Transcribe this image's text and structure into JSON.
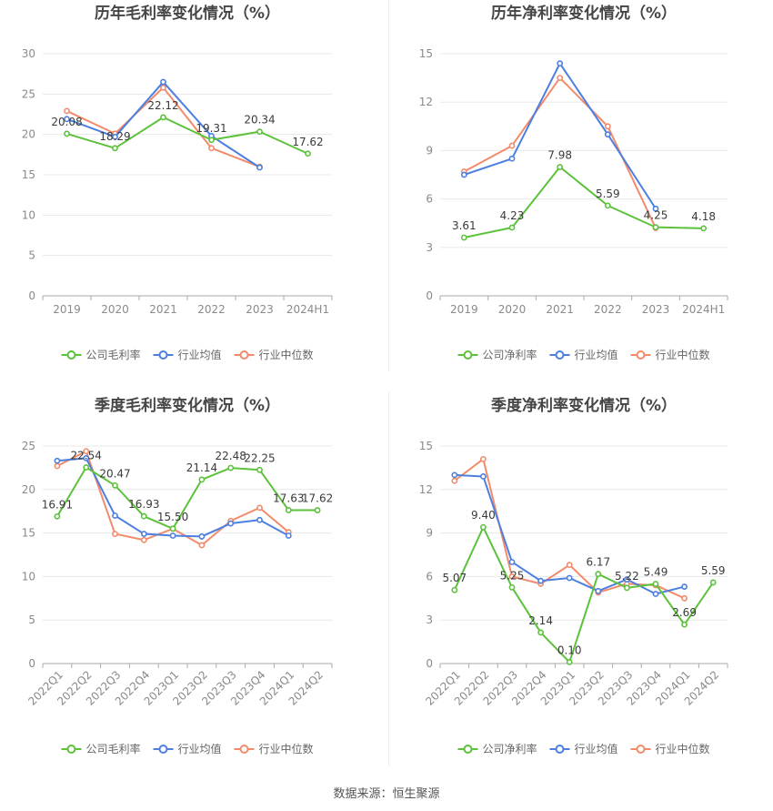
{
  "source": "数据来源：恒生聚源",
  "chart_data": [
    {
      "type": "line",
      "title": "历年毛利率变化情况（%）",
      "categories": [
        "2019",
        "2020",
        "2021",
        "2022",
        "2023",
        "2024H1"
      ],
      "ylim": [
        0,
        30
      ],
      "yticks": [
        "0",
        "5",
        "10",
        "15",
        "20",
        "25",
        "30"
      ],
      "grid": true,
      "legend": "bottom",
      "series": [
        {
          "name": "公司毛利率",
          "color": "#5cc23b",
          "values": [
            20.08,
            18.29,
            22.12,
            19.31,
            20.34,
            17.62
          ],
          "labels": [
            "20.08",
            "18.29",
            "22.12",
            "19.31",
            "20.34",
            "17.62"
          ]
        },
        {
          "name": "行业均值",
          "color": "#4c7fe0",
          "values": [
            21.9,
            19.7,
            26.5,
            19.8,
            15.9,
            null
          ]
        },
        {
          "name": "行业中位数",
          "color": "#f28b6b",
          "values": [
            22.9,
            20.1,
            25.8,
            18.3,
            16.0,
            null
          ]
        }
      ]
    },
    {
      "type": "line",
      "title": "历年净利率变化情况（%）",
      "categories": [
        "2019",
        "2020",
        "2021",
        "2022",
        "2023",
        "2024H1"
      ],
      "ylim": [
        0,
        15
      ],
      "yticks": [
        "0",
        "3",
        "6",
        "9",
        "12",
        "15"
      ],
      "grid": true,
      "legend": "bottom",
      "series": [
        {
          "name": "公司净利率",
          "color": "#5cc23b",
          "values": [
            3.61,
            4.23,
            7.98,
            5.59,
            4.25,
            4.18
          ],
          "labels": [
            "3.61",
            "4.23",
            "7.98",
            "5.59",
            "4.25",
            "4.18"
          ]
        },
        {
          "name": "行业均值",
          "color": "#4c7fe0",
          "values": [
            7.5,
            8.5,
            14.4,
            10.0,
            5.4,
            null
          ]
        },
        {
          "name": "行业中位数",
          "color": "#f28b6b",
          "values": [
            7.7,
            9.3,
            13.5,
            10.5,
            4.2,
            null
          ]
        }
      ]
    },
    {
      "type": "line",
      "title": "季度毛利率变化情况（%）",
      "categories": [
        "2022Q1",
        "2022Q2",
        "2022Q3",
        "2022Q4",
        "2023Q1",
        "2023Q2",
        "2023Q3",
        "2023Q4",
        "2024Q1",
        "2024Q2"
      ],
      "ylim": [
        0,
        25
      ],
      "yticks": [
        "0",
        "5",
        "10",
        "15",
        "20",
        "25"
      ],
      "grid": true,
      "legend": "bottom",
      "series": [
        {
          "name": "公司毛利率",
          "color": "#5cc23b",
          "values": [
            16.91,
            22.54,
            20.47,
            16.93,
            15.5,
            21.14,
            22.48,
            22.25,
            17.63,
            17.62
          ],
          "labels": [
            "16.91",
            "22.54",
            "20.47",
            "16.93",
            "15.50",
            "21.14",
            "22.48",
            "22.25",
            "17.63",
            "17.62"
          ]
        },
        {
          "name": "行业均值",
          "color": "#4c7fe0",
          "values": [
            23.3,
            23.6,
            17.0,
            14.9,
            14.7,
            14.6,
            16.1,
            16.5,
            14.7,
            null
          ]
        },
        {
          "name": "行业中位数",
          "color": "#f28b6b",
          "values": [
            22.7,
            24.4,
            14.9,
            14.2,
            15.5,
            13.6,
            16.4,
            17.9,
            15.1,
            null
          ]
        }
      ]
    },
    {
      "type": "line",
      "title": "季度净利率变化情况（%）",
      "categories": [
        "2022Q1",
        "2022Q2",
        "2022Q3",
        "2022Q4",
        "2023Q1",
        "2023Q2",
        "2023Q3",
        "2023Q4",
        "2024Q1",
        "2024Q2"
      ],
      "ylim": [
        0,
        15
      ],
      "yticks": [
        "0",
        "3",
        "6",
        "9",
        "12",
        "15"
      ],
      "grid": true,
      "legend": "bottom",
      "series": [
        {
          "name": "公司净利率",
          "color": "#5cc23b",
          "values": [
            5.07,
            9.4,
            5.25,
            2.14,
            0.1,
            6.17,
            5.22,
            5.49,
            2.69,
            5.59
          ],
          "labels": [
            "5.07",
            "9.40",
            "5.25",
            "2.14",
            "0.10",
            "6.17",
            "5.22",
            "5.49",
            "2.69",
            "5.59"
          ]
        },
        {
          "name": "行业均值",
          "color": "#4c7fe0",
          "values": [
            13.0,
            12.9,
            7.0,
            5.7,
            5.9,
            5.0,
            5.8,
            4.8,
            5.3,
            null
          ]
        },
        {
          "name": "行业中位数",
          "color": "#f28b6b",
          "values": [
            12.6,
            14.1,
            6.0,
            5.5,
            6.8,
            4.9,
            5.5,
            5.4,
            4.5,
            null
          ]
        }
      ]
    }
  ]
}
